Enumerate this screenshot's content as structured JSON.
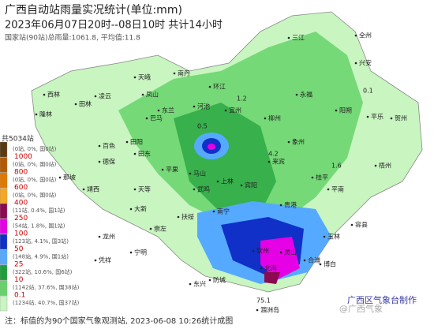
{
  "header": {
    "title": "广西自动站雨量实况统计(单位:mm)",
    "subtitle": "2023年06月07日20时--08日10时 共计14小时",
    "note": "国家站(90站)总雨量:1061.8, 平均值:11.8"
  },
  "legend": {
    "title": "共5034站",
    "items": [
      {
        "label": "",
        "stats": "(0站, 0%, 国0站)",
        "color": "#5a3a10"
      },
      {
        "label": "1000",
        "stats": "(0站, 0%, 国0站)",
        "color": "#b35a00"
      },
      {
        "label": "800",
        "stats": "(0站, 0%, 国0站)",
        "color": "#e07800"
      },
      {
        "label": "600",
        "stats": "(0站, 0%, 国0站)",
        "color": "#f5a623"
      },
      {
        "label": "400",
        "stats": "(11站, 0.4%, 国1站)",
        "color": "#8b0a50"
      },
      {
        "label": "250",
        "stats": "(54站, 1.8%, 国1站)",
        "color": "#e600e6"
      },
      {
        "label": "100",
        "stats": "(123站, 4.1%, 国3站)",
        "color": "#1030c8"
      },
      {
        "label": "50",
        "stats": "(148站, 4.9%, 国1站)",
        "color": "#55aaff"
      },
      {
        "label": "25",
        "stats": "(322站, 10.6%, 国6站)",
        "color": "#1e9e3a"
      },
      {
        "label": "10",
        "stats": "(1142站, 37.6%, 国38站)",
        "color": "#66d36a"
      },
      {
        "label": "0.1",
        "stats": "(1234站, 40.7%, 国37站)",
        "color": "#c8f5c0"
      }
    ]
  },
  "places": [
    {
      "name": "三江"
    },
    {
      "name": "全州"
    },
    {
      "name": "兴安"
    },
    {
      "name": "天峨"
    },
    {
      "name": "南丹"
    },
    {
      "name": "环江"
    },
    {
      "name": "河池"
    },
    {
      "name": "宜州"
    },
    {
      "name": "柳州"
    },
    {
      "name": "永福"
    },
    {
      "name": "阳朔"
    },
    {
      "name": "平乐"
    },
    {
      "name": "贺州"
    },
    {
      "name": "西林"
    },
    {
      "name": "隆林"
    },
    {
      "name": "田林"
    },
    {
      "name": "凌云"
    },
    {
      "name": "凤山"
    },
    {
      "name": "东兰"
    },
    {
      "name": "巴马"
    },
    {
      "name": "百色"
    },
    {
      "name": "田阳"
    },
    {
      "name": "田东"
    },
    {
      "name": "平果"
    },
    {
      "name": "马山"
    },
    {
      "name": "上林"
    },
    {
      "name": "宾阳"
    },
    {
      "name": "武鸣"
    },
    {
      "name": "那坡"
    },
    {
      "name": "德保"
    },
    {
      "name": "靖西"
    },
    {
      "name": "大新"
    },
    {
      "name": "天等"
    },
    {
      "name": "龙州"
    },
    {
      "name": "凭祥"
    },
    {
      "name": "宁明"
    },
    {
      "name": "崇左"
    },
    {
      "name": "扶绥"
    },
    {
      "name": "南宁"
    },
    {
      "name": "贵港"
    },
    {
      "name": "平南"
    },
    {
      "name": "桂平"
    },
    {
      "name": "梧州"
    },
    {
      "name": "容县"
    },
    {
      "name": "玉林"
    },
    {
      "name": "博白"
    },
    {
      "name": "灵山"
    },
    {
      "name": "钦州"
    },
    {
      "name": "防城"
    },
    {
      "name": "东兴"
    },
    {
      "name": "北海"
    },
    {
      "name": "合浦"
    },
    {
      "name": "涠洲岛"
    },
    {
      "name": "来宾"
    },
    {
      "name": "象州"
    }
  ],
  "values": [
    "75.1",
    "0.1",
    "1.2",
    "4.2",
    "0.5",
    "1.6"
  ],
  "footer": {
    "note": "注：标值的为90个国家气象观测站, 2023-06-08 10:26统计成图",
    "credit": "广西区气象台制作",
    "watermark": "@广西气象"
  }
}
